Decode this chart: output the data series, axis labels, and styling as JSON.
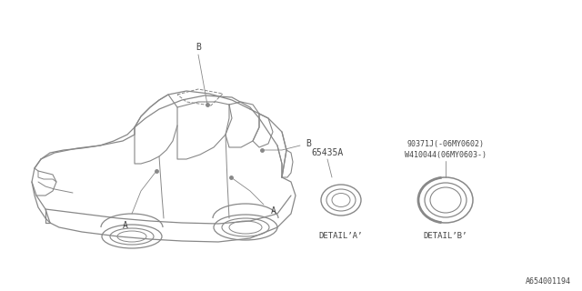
{
  "bg_color": "#ffffff",
  "line_color": "#888888",
  "text_color": "#444444",
  "fig_width": 6.4,
  "fig_height": 3.2,
  "dpi": 100,
  "footer_text": "A654001194",
  "detail_a_label": "DETAIL’A’",
  "detail_b_label": "DETAIL’B’",
  "part_a_number": "65435A",
  "part_b_number1": "90371J(-06MY0602)",
  "part_b_number2": "W410044(06MY0603-)",
  "label_a": "A",
  "label_b": "B"
}
